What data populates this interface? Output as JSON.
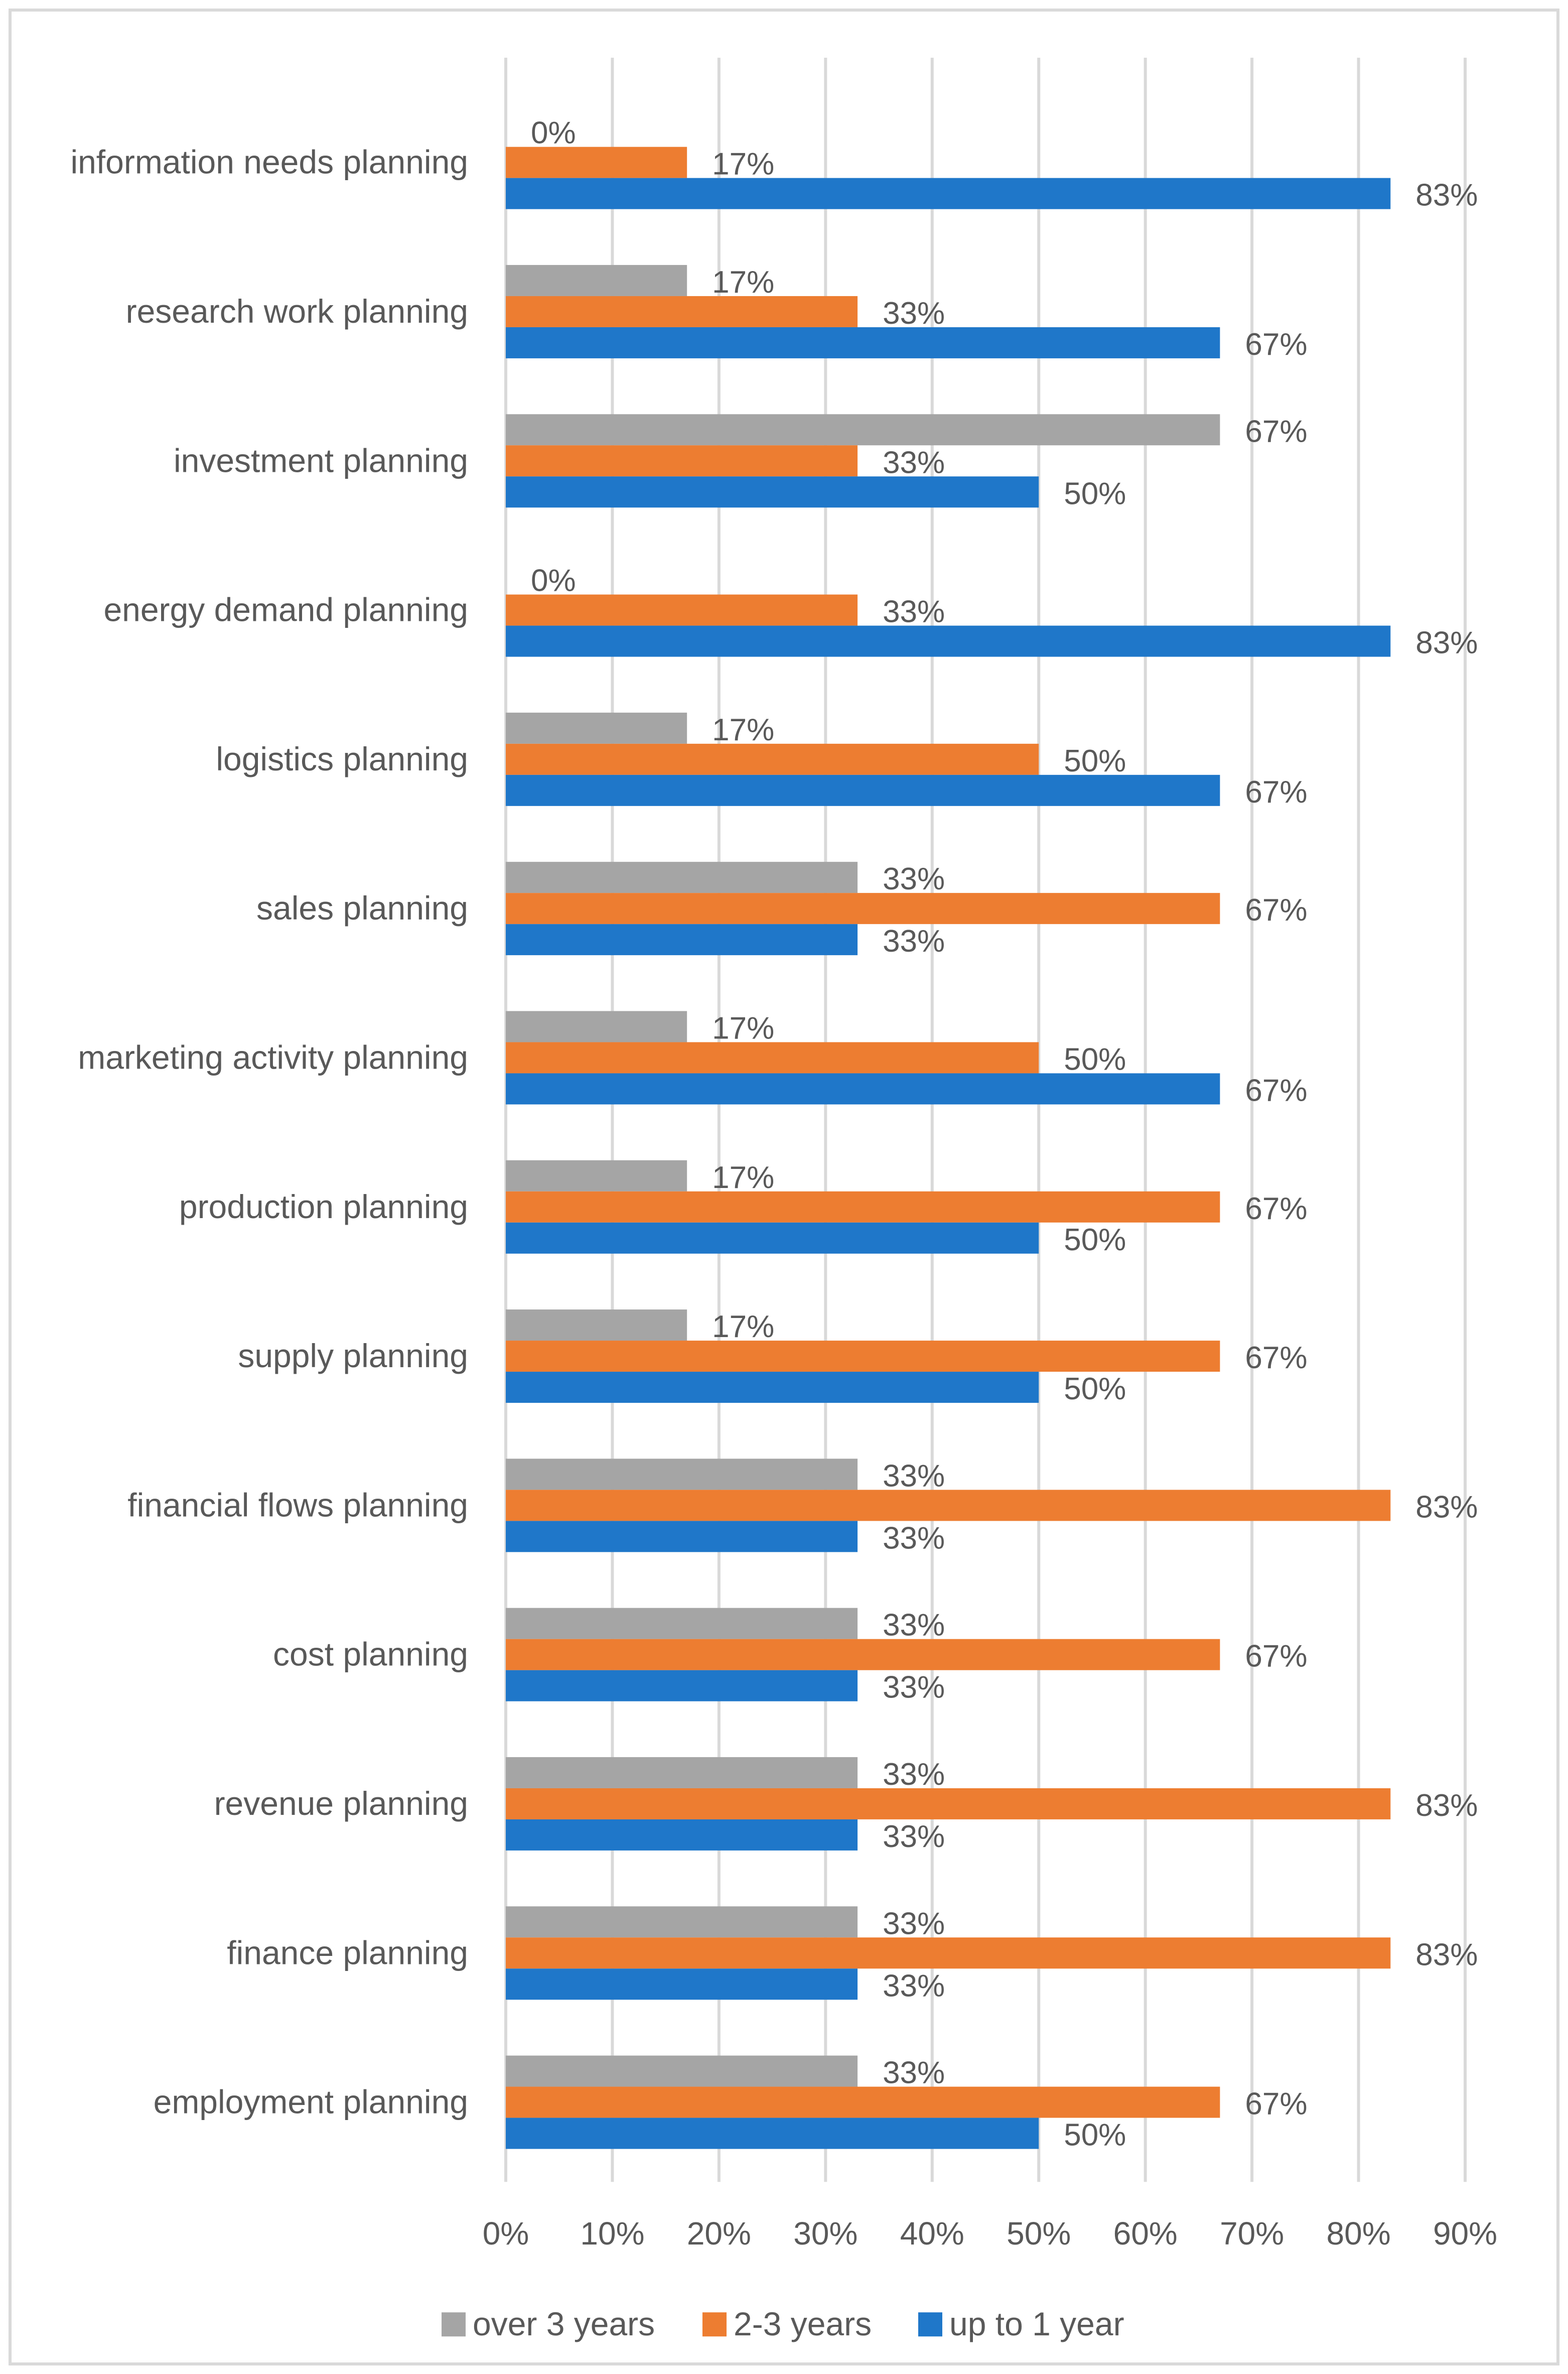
{
  "chart_data": {
    "type": "bar",
    "orientation": "horizontal",
    "title": "",
    "xlabel": "",
    "ylabel": "",
    "xlim": [
      0,
      90
    ],
    "x_ticks": [
      "0%",
      "10%",
      "20%",
      "30%",
      "40%",
      "50%",
      "60%",
      "70%",
      "80%",
      "90%"
    ],
    "grid": true,
    "legend_position": "bottom",
    "value_suffix": "%",
    "categories": [
      "information needs planning",
      "research work planning",
      "investment planning",
      "energy demand planning",
      "logistics planning",
      "sales planning",
      "marketing activity planning",
      "production planning",
      "supply planning",
      "financial flows planning",
      "cost planning",
      "revenue planning",
      "finance planning",
      "employment planning"
    ],
    "series": [
      {
        "name": "over 3 years",
        "color": "#a5a5a5",
        "values": [
          0,
          17,
          67,
          0,
          17,
          33,
          17,
          17,
          17,
          33,
          33,
          33,
          33,
          33
        ]
      },
      {
        "name": "2-3 years",
        "color": "#ed7d31",
        "values": [
          17,
          33,
          33,
          33,
          50,
          67,
          50,
          67,
          67,
          83,
          67,
          83,
          83,
          67
        ]
      },
      {
        "name": "up to 1 year",
        "color": "#1f77c9",
        "values": [
          83,
          67,
          50,
          83,
          67,
          33,
          67,
          50,
          50,
          33,
          33,
          33,
          33,
          50
        ]
      }
    ]
  }
}
